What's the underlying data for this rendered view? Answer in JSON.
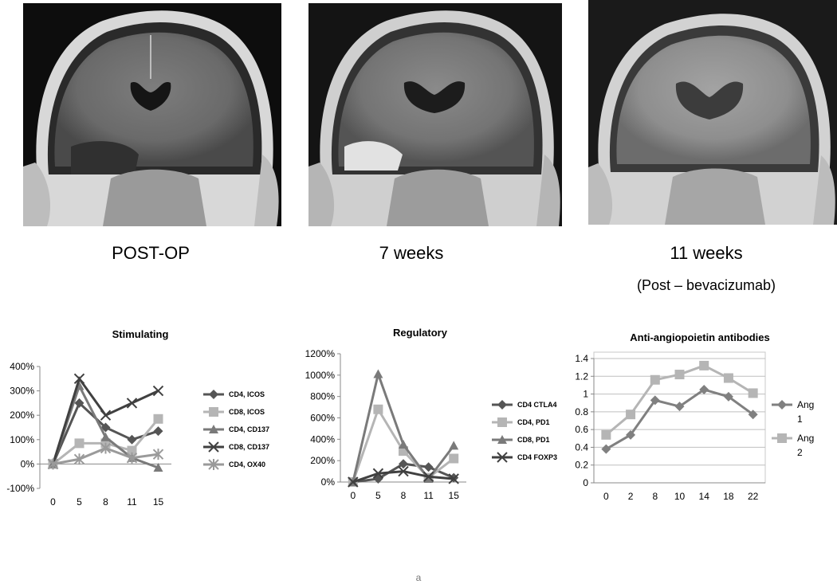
{
  "captions": {
    "scan1": "POST-OP",
    "scan2": "7 weeks",
    "scan3": "11 weeks",
    "scan3_sub": "(Post – bevacizumab)"
  },
  "footer": "a",
  "colors": {
    "dark": "#555555",
    "light": "#b5b5b5",
    "mid": "#808080",
    "darkest": "#404040",
    "grid": "#bfbfbf"
  },
  "chart_data": [
    {
      "type": "line",
      "title": "Stimulating",
      "x": [
        "0",
        "5",
        "8",
        "11",
        "15"
      ],
      "ylim": [
        -100,
        400
      ],
      "yticks": [
        "-100%",
        "0%",
        "100%",
        "200%",
        "300%",
        "400%"
      ],
      "legend_position": "right",
      "series": [
        {
          "name": "CD4, ICOS",
          "values": [
            0,
            250,
            150,
            100,
            135
          ],
          "marker": "diamond",
          "color": "#555555"
        },
        {
          "name": "CD8, ICOS",
          "values": [
            0,
            85,
            85,
            55,
            185
          ],
          "marker": "square",
          "color": "#b5b5b5"
        },
        {
          "name": "CD4, CD137",
          "values": [
            0,
            320,
            110,
            25,
            -15
          ],
          "marker": "triangle",
          "color": "#7a7a7a"
        },
        {
          "name": "CD8, CD137",
          "values": [
            0,
            350,
            200,
            250,
            300
          ],
          "marker": "x",
          "color": "#404040"
        },
        {
          "name": "CD4, OX40",
          "values": [
            0,
            20,
            65,
            25,
            40
          ],
          "marker": "star",
          "color": "#9a9a9a"
        }
      ]
    },
    {
      "type": "line",
      "title": "Regulatory",
      "x": [
        "0",
        "5",
        "8",
        "11",
        "15"
      ],
      "ylim": [
        0,
        1200
      ],
      "yticks": [
        "0%",
        "200%",
        "400%",
        "600%",
        "800%",
        "1000%",
        "1200%"
      ],
      "legend_position": "right",
      "series": [
        {
          "name": "CD4 CTLA4",
          "values": [
            0,
            30,
            170,
            140,
            40
          ],
          "marker": "diamond",
          "color": "#555555"
        },
        {
          "name": "CD4, PD1",
          "values": [
            0,
            680,
            290,
            40,
            220
          ],
          "marker": "square",
          "color": "#b5b5b5"
        },
        {
          "name": "CD8, PD1",
          "values": [
            0,
            1010,
            350,
            30,
            340
          ],
          "marker": "triangle",
          "color": "#7a7a7a"
        },
        {
          "name": "CD4 FOXP3",
          "values": [
            0,
            80,
            100,
            50,
            30
          ],
          "marker": "x",
          "color": "#404040"
        }
      ]
    },
    {
      "type": "line",
      "title": "Anti-angiopoietin antibodies",
      "x": [
        "0",
        "2",
        "8",
        "10",
        "14",
        "18",
        "22"
      ],
      "ylim": [
        0,
        1.4
      ],
      "yticks": [
        "0",
        "0.2",
        "0.4",
        "0.6",
        "0.8",
        "1",
        "1.2",
        "1.4"
      ],
      "grid": true,
      "legend_position": "right",
      "series": [
        {
          "name": "Ang 1",
          "values": [
            0.38,
            0.54,
            0.93,
            0.86,
            1.05,
            0.97,
            0.77
          ],
          "marker": "diamond",
          "color": "#808080",
          "legend_lines": [
            "Ang",
            "1"
          ]
        },
        {
          "name": "Ang 2",
          "values": [
            0.54,
            0.77,
            1.16,
            1.22,
            1.32,
            1.18,
            1.01
          ],
          "marker": "square",
          "color": "#b5b5b5",
          "legend_lines": [
            "Ang",
            "2"
          ]
        }
      ]
    }
  ]
}
